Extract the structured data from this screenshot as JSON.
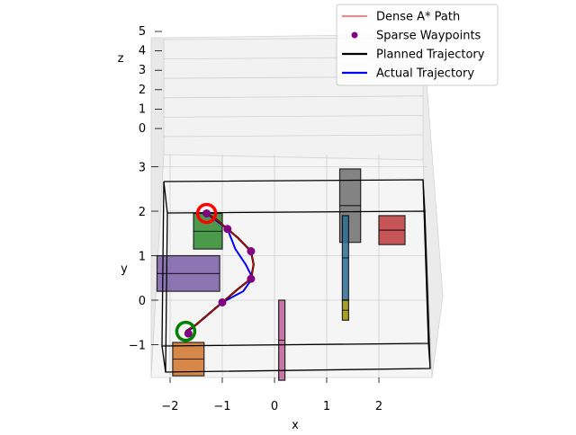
{
  "chart_data": {
    "type": "3d-path-plot",
    "legend": {
      "placement": "top-right",
      "entries": [
        {
          "label": "Dense A* Path",
          "color": "#ff0000",
          "marker": "line-thin"
        },
        {
          "label": "Sparse Waypoints",
          "color": "#800080",
          "marker": "dot"
        },
        {
          "label": "Planned Trajectory",
          "color": "#000000",
          "marker": "line-thick"
        },
        {
          "label": "Actual Trajectory",
          "color": "#0000ff",
          "marker": "line-thick"
        }
      ]
    },
    "axes": {
      "x": {
        "label": "x",
        "ticks": [
          "−2",
          "−1",
          "0",
          "1",
          "2"
        ],
        "range": [
          -2.2,
          3.0
        ]
      },
      "y": {
        "label": "y",
        "ticks": [
          "−1",
          "0",
          "1",
          "2",
          "3"
        ],
        "range": [
          -1.8,
          3.2
        ]
      },
      "z": {
        "label": "z",
        "ticks": [
          "0",
          "1",
          "2",
          "3",
          "4",
          "5"
        ],
        "range": [
          0,
          5
        ]
      },
      "grid": true
    },
    "start": {
      "x": -1.7,
      "y": -0.7,
      "color": "#008000"
    },
    "goal": {
      "x": -1.3,
      "y": 1.95,
      "color": "#ff0000"
    },
    "waypoints": [
      {
        "x": -1.65,
        "y": -0.75
      },
      {
        "x": -1.0,
        "y": -0.05
      },
      {
        "x": -0.45,
        "y": 0.48
      },
      {
        "x": -0.45,
        "y": 1.1
      },
      {
        "x": -0.9,
        "y": 1.6
      },
      {
        "x": -1.3,
        "y": 1.95
      }
    ],
    "planned_path": [
      {
        "x": -1.7,
        "y": -0.7
      },
      {
        "x": -1.5,
        "y": -0.55
      },
      {
        "x": -1.2,
        "y": -0.25
      },
      {
        "x": -1.0,
        "y": -0.05
      },
      {
        "x": -0.7,
        "y": 0.25
      },
      {
        "x": -0.45,
        "y": 0.48
      },
      {
        "x": -0.4,
        "y": 0.8
      },
      {
        "x": -0.45,
        "y": 1.1
      },
      {
        "x": -0.7,
        "y": 1.4
      },
      {
        "x": -0.9,
        "y": 1.6
      },
      {
        "x": -1.1,
        "y": 1.8
      },
      {
        "x": -1.3,
        "y": 1.95
      }
    ],
    "actual_path": [
      {
        "x": -1.7,
        "y": -0.7
      },
      {
        "x": -1.6,
        "y": -0.65
      },
      {
        "x": -1.2,
        "y": -0.25
      },
      {
        "x": -1.0,
        "y": -0.05
      },
      {
        "x": -0.6,
        "y": 0.2
      },
      {
        "x": -0.42,
        "y": 0.5
      },
      {
        "x": -0.55,
        "y": 0.8
      },
      {
        "x": -0.75,
        "y": 1.15
      },
      {
        "x": -0.9,
        "y": 1.6
      },
      {
        "x": -1.3,
        "y": 1.95
      }
    ],
    "obstacles": [
      {
        "name": "green-box",
        "color": "#2e8b2e",
        "x": [
          -1.55,
          -1.0
        ],
        "y": [
          1.15,
          1.95
        ]
      },
      {
        "name": "purple-box",
        "color": "#7b5ea7",
        "x": [
          -2.25,
          -1.05
        ],
        "y": [
          0.2,
          1.0
        ]
      },
      {
        "name": "orange-box",
        "color": "#d2762a",
        "x": [
          -1.95,
          -1.35
        ],
        "y": [
          -1.7,
          -0.95
        ]
      },
      {
        "name": "gray-box",
        "color": "#707070",
        "x": [
          1.25,
          1.65
        ],
        "y": [
          1.3,
          2.95
        ]
      },
      {
        "name": "red-box",
        "color": "#c0393b",
        "x": [
          2.0,
          2.5
        ],
        "y": [
          1.25,
          1.9
        ]
      },
      {
        "name": "blue-pole",
        "color": "#2a6f97",
        "x": [
          1.3,
          1.42
        ],
        "y": [
          0.0,
          1.9
        ]
      },
      {
        "name": "olive-pole",
        "color": "#9b9000",
        "x": [
          1.3,
          1.42
        ],
        "y": [
          -0.45,
          0.0
        ]
      },
      {
        "name": "pink-pole",
        "color": "#c0609a",
        "x": [
          0.08,
          0.2
        ],
        "y": [
          -1.8,
          0.0
        ]
      }
    ]
  }
}
